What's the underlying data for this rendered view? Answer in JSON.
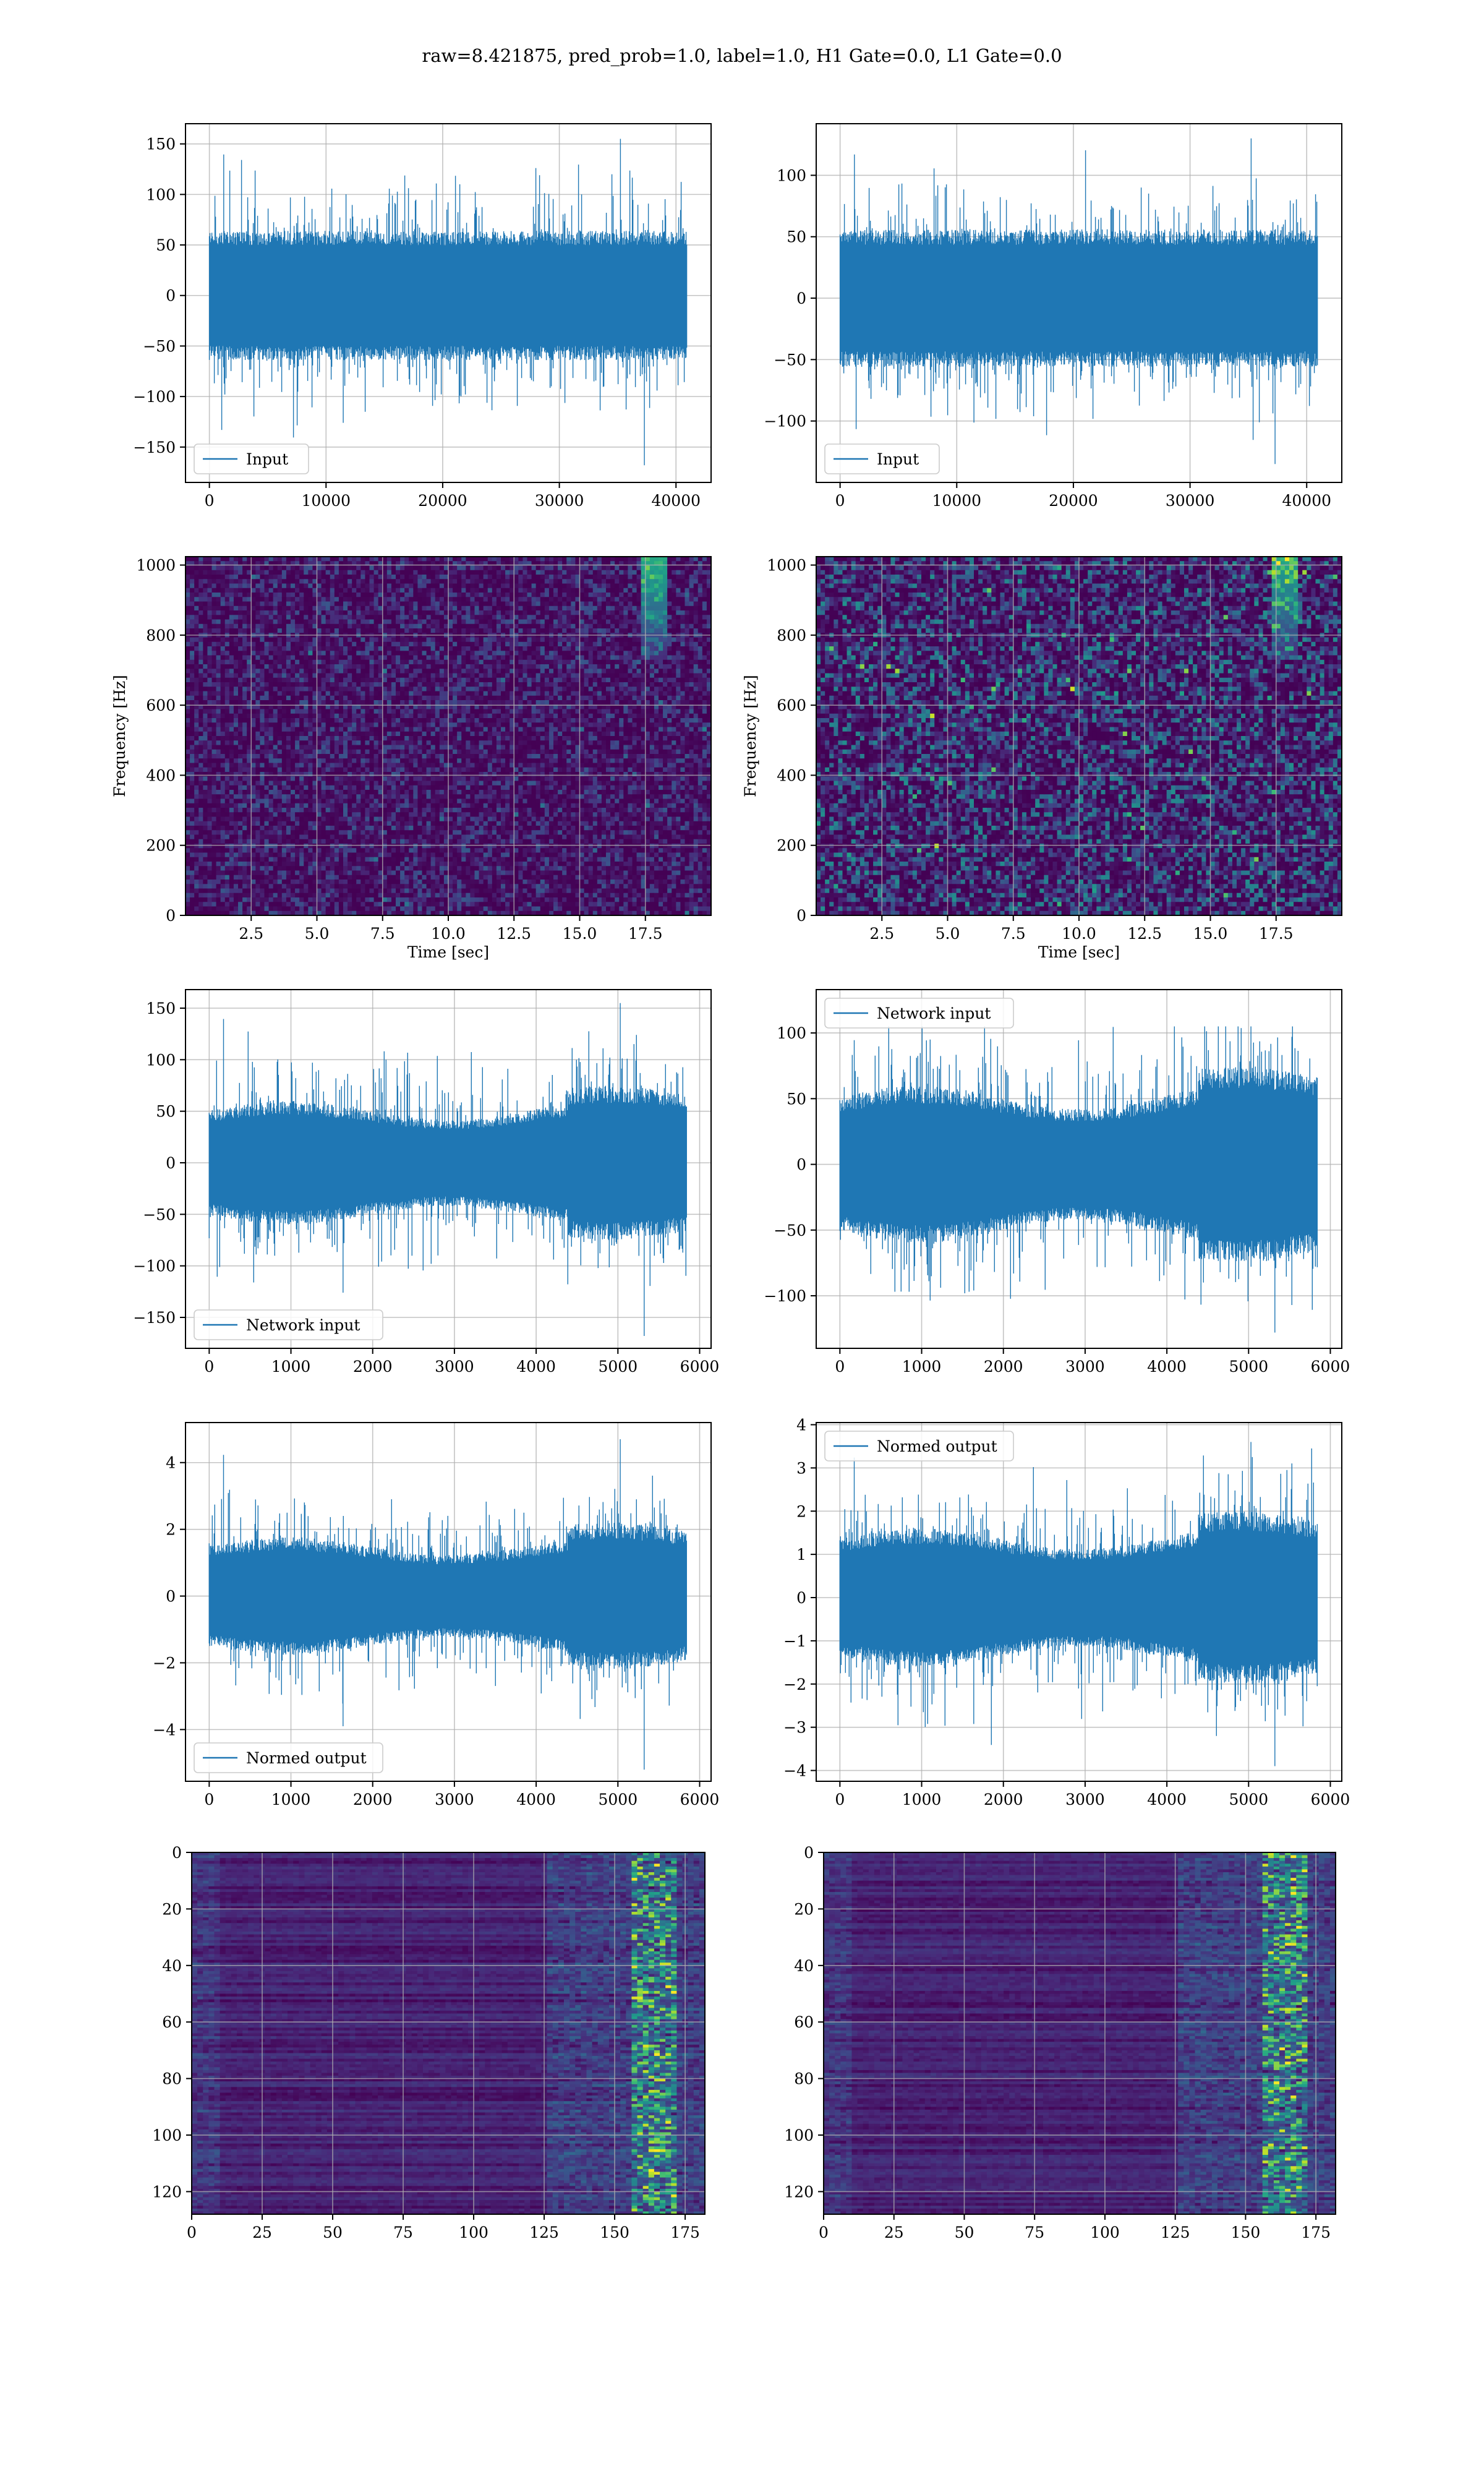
{
  "title": "raw=8.421875, pred_prob=1.0, label=1.0, H1 Gate=0.0, L1 Gate=0.0",
  "colors": {
    "line": "#1f77b4",
    "grid": "#b0b0b0",
    "viridis_low": "#440154",
    "viridis_mid": "#21918c",
    "viridis_high": "#fde725"
  },
  "chart_data": [
    {
      "id": "h1-input",
      "type": "line",
      "legend": "Input",
      "legend_loc": "lower left",
      "n_points": 40960,
      "amplitude_stats": {
        "typical_abs_max": 80,
        "min": -168,
        "max": 155
      },
      "xlim": [
        -2048,
        43008
      ],
      "ylim": [
        -185,
        170
      ],
      "xticks": [
        0,
        10000,
        20000,
        30000,
        40000
      ],
      "yticks": [
        -150,
        -100,
        -50,
        0,
        50,
        100,
        150
      ],
      "xticklabels": [
        "0",
        "10000",
        "20000",
        "30000",
        "40000"
      ],
      "yticklabels": [
        "−150",
        "−100",
        "−50",
        "0",
        "50",
        "100",
        "150"
      ],
      "grid": true
    },
    {
      "id": "l1-input",
      "type": "line",
      "legend": "Input",
      "legend_loc": "lower left",
      "n_points": 40960,
      "amplitude_stats": {
        "typical_abs_max": 70,
        "min": -135,
        "max": 130
      },
      "xlim": [
        -2048,
        43008
      ],
      "ylim": [
        -150,
        142
      ],
      "xticks": [
        0,
        10000,
        20000,
        30000,
        40000
      ],
      "yticks": [
        -100,
        -50,
        0,
        50,
        100
      ],
      "xticklabels": [
        "0",
        "10000",
        "20000",
        "30000",
        "40000"
      ],
      "yticklabels": [
        "−100",
        "−50",
        "0",
        "50",
        "100"
      ],
      "grid": true
    },
    {
      "id": "h1-spectrogram",
      "type": "heatmap",
      "colormap": "viridis",
      "xlabel": "Time [sec]",
      "ylabel": "Frequency [Hz]",
      "xlim": [
        0,
        20
      ],
      "ylim": [
        0,
        1024
      ],
      "xticks": [
        2.5,
        5.0,
        7.5,
        10.0,
        12.5,
        15.0,
        17.5
      ],
      "yticks": [
        0,
        200,
        400,
        600,
        800,
        1000
      ],
      "xticklabels": [
        "2.5",
        "5.0",
        "7.5",
        "10.0",
        "12.5",
        "15.0",
        "17.5"
      ],
      "yticklabels": [
        "0",
        "200",
        "400",
        "600",
        "800",
        "1000"
      ],
      "grid": true
    },
    {
      "id": "l1-spectrogram",
      "type": "heatmap",
      "colormap": "viridis",
      "xlabel": "Time [sec]",
      "ylabel": "Frequency [Hz]",
      "xlim": [
        0,
        20
      ],
      "ylim": [
        0,
        1024
      ],
      "xticks": [
        2.5,
        5.0,
        7.5,
        10.0,
        12.5,
        15.0,
        17.5
      ],
      "yticks": [
        0,
        200,
        400,
        600,
        800,
        1000
      ],
      "xticklabels": [
        "2.5",
        "5.0",
        "7.5",
        "10.0",
        "12.5",
        "15.0",
        "17.5"
      ],
      "yticklabels": [
        "0",
        "200",
        "400",
        "600",
        "800",
        "1000"
      ],
      "grid": true
    },
    {
      "id": "h1-network-input",
      "type": "line",
      "legend": "Network input",
      "legend_loc": "lower left",
      "n_points": 5850,
      "amplitude_stats": {
        "typical_abs_max": 75,
        "min": -168,
        "max": 155
      },
      "xlim": [
        -290,
        6140
      ],
      "ylim": [
        -180,
        168
      ],
      "xticks": [
        0,
        1000,
        2000,
        3000,
        4000,
        5000,
        6000
      ],
      "yticks": [
        -150,
        -100,
        -50,
        0,
        50,
        100,
        150
      ],
      "xticklabels": [
        "0",
        "1000",
        "2000",
        "3000",
        "4000",
        "5000",
        "6000"
      ],
      "yticklabels": [
        "−150",
        "−100",
        "−50",
        "0",
        "50",
        "100",
        "150"
      ],
      "grid": true
    },
    {
      "id": "l1-network-input",
      "type": "line",
      "legend": "Network input",
      "legend_loc": "upper left",
      "n_points": 5850,
      "amplitude_stats": {
        "typical_abs_max": 75,
        "min": -128,
        "max": 105
      },
      "xlim": [
        -290,
        6140
      ],
      "ylim": [
        -140,
        133
      ],
      "xticks": [
        0,
        1000,
        2000,
        3000,
        4000,
        5000,
        6000
      ],
      "yticks": [
        -100,
        -50,
        0,
        50,
        100
      ],
      "xticklabels": [
        "0",
        "1000",
        "2000",
        "3000",
        "4000",
        "5000",
        "6000"
      ],
      "yticklabels": [
        "−100",
        "−50",
        "0",
        "50",
        "100"
      ],
      "grid": true
    },
    {
      "id": "h1-normed-output",
      "type": "line",
      "legend": "Normed output",
      "legend_loc": "lower left",
      "n_points": 5850,
      "amplitude_stats": {
        "typical_abs_max": 2.2,
        "min": -5.2,
        "max": 4.7
      },
      "xlim": [
        -290,
        6140
      ],
      "ylim": [
        -5.55,
        5.2
      ],
      "xticks": [
        0,
        1000,
        2000,
        3000,
        4000,
        5000,
        6000
      ],
      "yticks": [
        -4,
        -2,
        0,
        2,
        4
      ],
      "xticklabels": [
        "0",
        "1000",
        "2000",
        "3000",
        "4000",
        "5000",
        "6000"
      ],
      "yticklabels": [
        "−4",
        "−2",
        "0",
        "2",
        "4"
      ],
      "grid": true
    },
    {
      "id": "l1-normed-output",
      "type": "line",
      "legend": "Normed output",
      "legend_loc": "upper left",
      "n_points": 5850,
      "amplitude_stats": {
        "typical_abs_max": 2.0,
        "min": -3.9,
        "max": 3.6
      },
      "xlim": [
        -290,
        6140
      ],
      "ylim": [
        -4.25,
        4.05
      ],
      "xticks": [
        0,
        1000,
        2000,
        3000,
        4000,
        5000,
        6000
      ],
      "yticks": [
        -4,
        -3,
        -2,
        -1,
        0,
        1,
        2,
        3,
        4
      ],
      "xticklabels": [
        "0",
        "1000",
        "2000",
        "3000",
        "4000",
        "5000",
        "6000"
      ],
      "yticklabels": [
        "−4",
        "−3",
        "−2",
        "−1",
        "0",
        "1",
        "2",
        "3",
        "4"
      ],
      "grid": true
    },
    {
      "id": "h1-feature-map",
      "type": "heatmap",
      "colormap": "viridis",
      "rows": 128,
      "cols": 182,
      "xlim": [
        0,
        182
      ],
      "ylim": [
        128,
        0
      ],
      "xticks": [
        0,
        25,
        50,
        75,
        100,
        125,
        150,
        175
      ],
      "yticks": [
        0,
        20,
        40,
        60,
        80,
        100,
        120
      ],
      "xticklabels": [
        "0",
        "25",
        "50",
        "75",
        "100",
        "125",
        "150",
        "175"
      ],
      "yticklabels": [
        "0",
        "20",
        "40",
        "60",
        "80",
        "100",
        "120"
      ],
      "grid": true
    },
    {
      "id": "l1-feature-map",
      "type": "heatmap",
      "colormap": "viridis",
      "rows": 128,
      "cols": 182,
      "xlim": [
        0,
        182
      ],
      "ylim": [
        128,
        0
      ],
      "xticks": [
        0,
        25,
        50,
        75,
        100,
        125,
        150,
        175
      ],
      "yticks": [
        0,
        20,
        40,
        60,
        80,
        100,
        120
      ],
      "xticklabels": [
        "0",
        "25",
        "50",
        "75",
        "100",
        "125",
        "150",
        "175"
      ],
      "yticklabels": [
        "0",
        "20",
        "40",
        "60",
        "80",
        "100",
        "120"
      ],
      "grid": true
    }
  ]
}
